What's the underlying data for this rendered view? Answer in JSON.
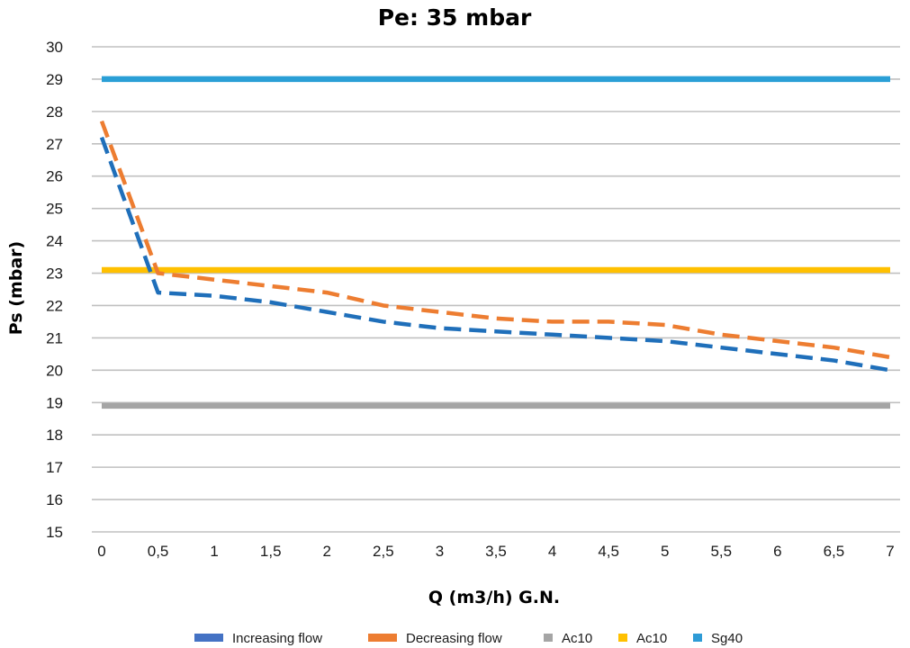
{
  "chart_data": {
    "type": "line",
    "title": "Pe: 35 mbar",
    "xlabel": "Q (m3/h) G.N.",
    "ylabel": "Ps (mbar)",
    "categories": [
      "0",
      "0,5",
      "1",
      "1,5",
      "2",
      "2,5",
      "3",
      "3,5",
      "4",
      "4,5",
      "5",
      "5,5",
      "6",
      "6,5",
      "7"
    ],
    "x": [
      0,
      0.5,
      1,
      1.5,
      2,
      2.5,
      3,
      3.5,
      4,
      4.5,
      5,
      5.5,
      6,
      6.5,
      7
    ],
    "ylim": [
      15,
      30
    ],
    "yticks": [
      "15",
      "16",
      "17",
      "18",
      "19",
      "20",
      "21",
      "22",
      "23",
      "24",
      "25",
      "26",
      "27",
      "28",
      "29",
      "30"
    ],
    "grid": true,
    "legend_position": "bottom",
    "series": [
      {
        "name": "Increasing flow",
        "color": "#1f6fba",
        "style": "dashed",
        "legend_color": "#4472c4",
        "values": [
          27.2,
          22.4,
          22.3,
          22.1,
          21.8,
          21.5,
          21.3,
          21.2,
          21.1,
          21.0,
          20.9,
          20.7,
          20.5,
          20.3,
          20.0
        ]
      },
      {
        "name": "Decreasing  flow",
        "color": "#ed7d31",
        "style": "dashed",
        "legend_color": "#ed7d31",
        "values": [
          27.7,
          23.0,
          22.8,
          22.6,
          22.4,
          22.0,
          21.8,
          21.6,
          21.5,
          21.5,
          21.4,
          21.1,
          20.9,
          20.7,
          20.4
        ]
      },
      {
        "name": "Ac10",
        "color": "#a5a5a5",
        "style": "solid",
        "legend_color": "#a5a5a5",
        "values": [
          18.9,
          18.9,
          18.9,
          18.9,
          18.9,
          18.9,
          18.9,
          18.9,
          18.9,
          18.9,
          18.9,
          18.9,
          18.9,
          18.9,
          18.9
        ]
      },
      {
        "name": "Ac10",
        "color": "#ffc000",
        "style": "solid",
        "legend_color": "#ffc000",
        "values": [
          23.1,
          23.1,
          23.1,
          23.1,
          23.1,
          23.1,
          23.1,
          23.1,
          23.1,
          23.1,
          23.1,
          23.1,
          23.1,
          23.1,
          23.1
        ]
      },
      {
        "name": "Sg40",
        "color": "#2a9fd6",
        "style": "solid",
        "legend_color": "#2e9bd6",
        "values": [
          29.0,
          29.0,
          29.0,
          29.0,
          29.0,
          29.0,
          29.0,
          29.0,
          29.0,
          29.0,
          29.0,
          29.0,
          29.0,
          29.0,
          29.0
        ]
      }
    ]
  }
}
